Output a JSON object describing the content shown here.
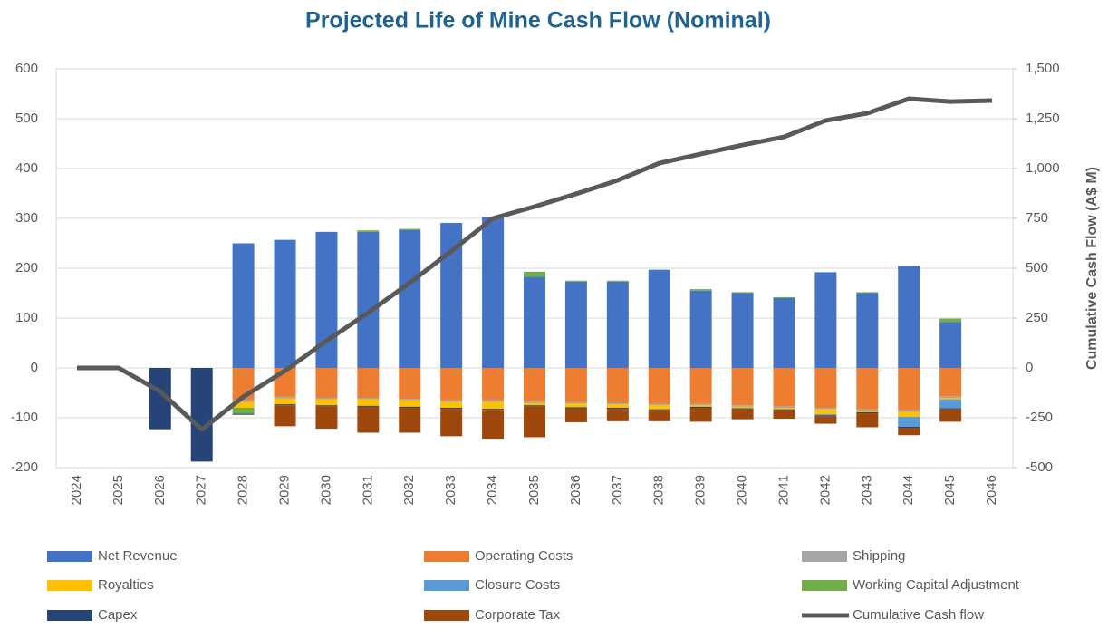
{
  "chart_data": {
    "type": "bar",
    "stacked": true,
    "title": "Projected Life of Mine Cash Flow (Nominal)",
    "y2_label": "Cumulative Cash Flow (A$ M)",
    "categories": [
      "2024",
      "2025",
      "2026",
      "2027",
      "2028",
      "2029",
      "2030",
      "2031",
      "2032",
      "2033",
      "2034",
      "2035",
      "2036",
      "2037",
      "2038",
      "2039",
      "2040",
      "2041",
      "2042",
      "2043",
      "2044",
      "2045",
      "2046"
    ],
    "ylim": [
      -200,
      600
    ],
    "yticks": [
      -200,
      -100,
      0,
      100,
      200,
      300,
      400,
      500,
      600
    ],
    "y2lim": [
      -500,
      1500
    ],
    "y2ticks": [
      -500,
      -250,
      0,
      250,
      500,
      750,
      {
        "value": 1000,
        "label": "1,000"
      },
      {
        "value": 1250,
        "label": "1,250"
      },
      {
        "value": 1500,
        "label": "1,500"
      }
    ],
    "grid": true,
    "legend": "bottom",
    "series": [
      {
        "name": "Net Revenue",
        "color": "#4472c4",
        "values": [
          null,
          null,
          null,
          null,
          250,
          257,
          273,
          273,
          277,
          291,
          303,
          183,
          173,
          173,
          197,
          155,
          150,
          140,
          192,
          150,
          205,
          92,
          null
        ]
      },
      {
        "name": "Operating Costs",
        "color": "#ed7d31",
        "values": [
          null,
          null,
          null,
          null,
          -65,
          -58,
          -60,
          -60,
          -62,
          -65,
          -65,
          -67,
          -68,
          -70,
          -72,
          -72,
          -75,
          -77,
          -80,
          -83,
          -85,
          -57,
          null
        ]
      },
      {
        "name": "Shipping",
        "color": "#a5a5a5",
        "values": [
          null,
          null,
          null,
          null,
          -3,
          -3,
          -3,
          -3,
          -3,
          -3,
          -3,
          -3,
          -3,
          -3,
          -3,
          -3,
          -3,
          -3,
          -3,
          -3,
          -3,
          -3,
          null
        ]
      },
      {
        "name": "Royalties",
        "color": "#ffc000",
        "values": [
          null,
          null,
          null,
          null,
          -12,
          -12,
          -12,
          -13,
          -13,
          -12,
          -14,
          -5,
          -8,
          -7,
          -8,
          -3,
          -3,
          -3,
          -10,
          -3,
          -10,
          -3,
          null
        ]
      },
      {
        "name": "Closure Costs",
        "color": "#5b9bd5",
        "values": [
          null,
          null,
          null,
          null,
          null,
          null,
          null,
          null,
          null,
          null,
          null,
          null,
          null,
          null,
          null,
          null,
          null,
          null,
          -2,
          null,
          -20,
          -18,
          null
        ]
      },
      {
        "name": "Working Capital Adjustment",
        "color": "#70ad47",
        "values": [
          null,
          null,
          null,
          null,
          -12,
          null,
          null,
          3,
          2,
          null,
          null,
          10,
          2,
          2,
          null,
          3,
          2,
          2,
          null,
          2,
          null,
          7,
          null
        ]
      },
      {
        "name": "Capex",
        "color": "#264478",
        "values": [
          null,
          null,
          -123,
          -188,
          -2,
          -2,
          -2,
          -2,
          -2,
          -2,
          -2,
          -2,
          -2,
          -2,
          -2,
          -2,
          -2,
          -2,
          -2,
          -2,
          -2,
          -2,
          null
        ]
      },
      {
        "name": "Corporate Tax",
        "color": "#9e480e",
        "values": [
          null,
          null,
          null,
          null,
          null,
          -42,
          -45,
          -52,
          -50,
          -55,
          -58,
          -62,
          -28,
          -25,
          -22,
          -28,
          -20,
          -17,
          -15,
          -28,
          -15,
          -25,
          null
        ]
      },
      {
        "name": "Cumulative Cash flow",
        "color": "#595959",
        "type": "line",
        "axis": "y2",
        "values": [
          0,
          0,
          -118,
          -309,
          -145,
          -14,
          136,
          277,
          427,
          586,
          750,
          809,
          873,
          941,
          1027,
          1073,
          1118,
          1159,
          1241,
          1277,
          1350,
          1336,
          1341
        ]
      }
    ]
  }
}
